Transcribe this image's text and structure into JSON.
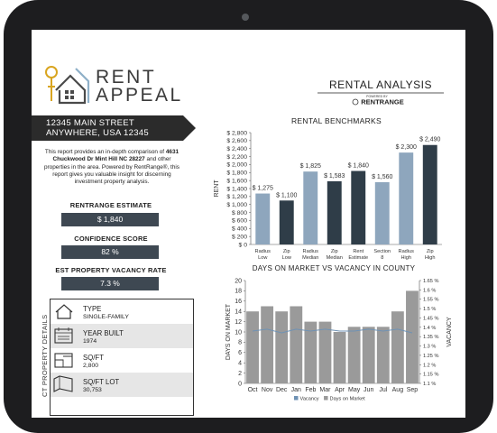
{
  "logo": {
    "line1": "RENT",
    "line2": "APPEAL"
  },
  "address": {
    "line1": "12345 MAIN STREET",
    "line2": "ANYWHERE, USA 12345"
  },
  "description": {
    "before": "This report provides an in-depth comparison of",
    "bold": "4631 Chuckwood Dr Mint Hill NC 28227",
    "after": "and other properties in the area. Powered by RentRange®, this report gives you valuable insight for discerning investment property analysis."
  },
  "metrics": [
    {
      "label": "RENTRANGE ESTIMATE",
      "value": "$ 1,840"
    },
    {
      "label": "CONFIDENCE SCORE",
      "value": "82 %"
    },
    {
      "label": "EST PROPERTY VACANCY RATE",
      "value": "7.3 %"
    }
  ],
  "property_details": {
    "title": "CT PROPERTY DETAILS",
    "rows": [
      {
        "label": "TYPE",
        "value": "SINGLE-FAMILY"
      },
      {
        "label": "YEAR BUILT",
        "value": "1974"
      },
      {
        "label": "SQ/FT",
        "value": "2,800"
      },
      {
        "label": "SQ/FT LOT",
        "value": "30,753"
      }
    ]
  },
  "header": {
    "title": "RENTAL ANALYSIS",
    "powered": "POWERED BY",
    "brand": "RENTRANGE"
  },
  "chart_data": [
    {
      "type": "bar",
      "title": "RENTAL BENCHMARKS",
      "y_label": "RENT",
      "categories": [
        "Radius Low",
        "Zip Low",
        "Radius Median",
        "Zip Median",
        "Rent Estimate",
        "Section 8",
        "Radius High",
        "Zip High"
      ],
      "values": [
        1275,
        1100,
        1825,
        1583,
        1840,
        1560,
        2300,
        2490
      ],
      "value_labels": [
        "$ 1,275",
        "$ 1,100",
        "$ 1,825",
        "$ 1,583",
        "$ 1,840",
        "$ 1,560",
        "$ 2,300",
        "$ 2,490"
      ],
      "colors": [
        "#8ea6bd",
        "#2f3d48",
        "#8ea6bd",
        "#2f3d48",
        "#2f3d48",
        "#8ea6bd",
        "#8ea6bd",
        "#2f3d48"
      ],
      "ylim": [
        0,
        2800
      ],
      "yticks": [
        {
          "value": 0,
          "label": "$ 0"
        },
        {
          "value": 200,
          "label": "$ 200"
        },
        {
          "value": 400,
          "label": "$ 400"
        },
        {
          "value": 600,
          "label": "$ 600"
        },
        {
          "value": 800,
          "label": "$ 800"
        },
        {
          "value": 1000,
          "label": "$ 1,000"
        },
        {
          "value": 1200,
          "label": "$ 1,200"
        },
        {
          "value": 1400,
          "label": "$ 1,400"
        },
        {
          "value": 1600,
          "label": "$ 1,600"
        },
        {
          "value": 1800,
          "label": "$ 1,800"
        },
        {
          "value": 2000,
          "label": "$ 2,000"
        },
        {
          "value": 2200,
          "label": "$ 2,200"
        },
        {
          "value": 2400,
          "label": "$ 2,400"
        },
        {
          "value": 2600,
          "label": "$ 2,600"
        },
        {
          "value": 2800,
          "label": "$ 2,800"
        }
      ],
      "grid": false
    },
    {
      "type": "bar",
      "title": "DAYS ON MARKET VS VACANCY IN COUNTY",
      "y_label": "DAYS ON MARKET",
      "y2_label": "VACANCY",
      "categories": [
        "Oct",
        "Nov",
        "Dec",
        "Jan",
        "Feb",
        "Mar",
        "Apr",
        "May",
        "Jun",
        "Jul",
        "Aug",
        "Sep"
      ],
      "series": [
        {
          "name": "Vacancy",
          "type": "line",
          "axis": "y2",
          "color": "#6f92b4",
          "values": [
            1.38,
            1.39,
            1.37,
            1.39,
            1.38,
            1.39,
            1.38,
            1.38,
            1.39,
            1.38,
            1.39,
            1.37
          ]
        },
        {
          "name": "Days on Market",
          "color": "#9a9a9a",
          "values": [
            14,
            15,
            14,
            15,
            12,
            12,
            10,
            11,
            11,
            11,
            14,
            18
          ]
        }
      ],
      "ylim": [
        0,
        20
      ],
      "yticks": [
        0,
        2,
        4,
        6,
        8,
        10,
        12,
        14,
        16,
        18,
        20
      ],
      "y2lim": [
        1.1,
        1.65
      ],
      "y2ticks": [
        {
          "value": 1.1,
          "label": "1.1 %"
        },
        {
          "value": 1.15,
          "label": "1.15 %"
        },
        {
          "value": 1.2,
          "label": "1.2 %"
        },
        {
          "value": 1.25,
          "label": "1.25 %"
        },
        {
          "value": 1.3,
          "label": "1.3 %"
        },
        {
          "value": 1.35,
          "label": "1.35 %"
        },
        {
          "value": 1.4,
          "label": "1.4 %"
        },
        {
          "value": 1.45,
          "label": "1.45 %"
        },
        {
          "value": 1.5,
          "label": "1.5 %"
        },
        {
          "value": 1.55,
          "label": "1.55 %"
        },
        {
          "value": 1.6,
          "label": "1.6 %"
        },
        {
          "value": 1.65,
          "label": "1.65 %"
        }
      ],
      "grid": false
    }
  ]
}
